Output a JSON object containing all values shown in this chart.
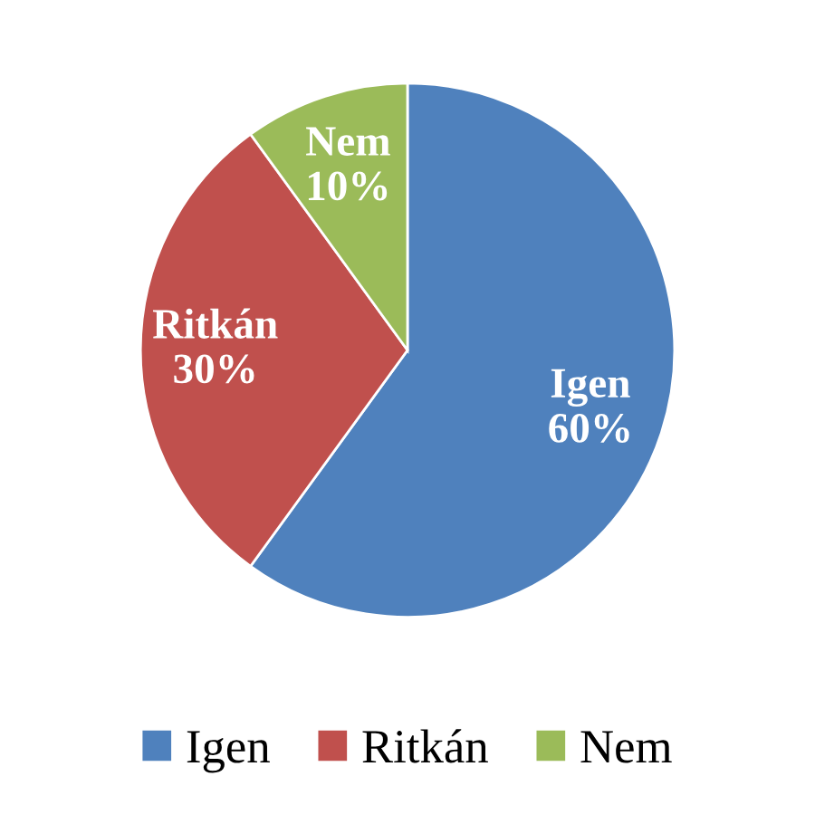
{
  "chart_data": {
    "type": "pie",
    "categories": [
      "Igen",
      "Ritkán",
      "Nem"
    ],
    "values": [
      60,
      30,
      10
    ],
    "value_labels": [
      "60%",
      "30%",
      "10%"
    ],
    "colors": [
      "#4f81bd",
      "#c0504d",
      "#9bbb59"
    ],
    "legend": "bottom"
  }
}
